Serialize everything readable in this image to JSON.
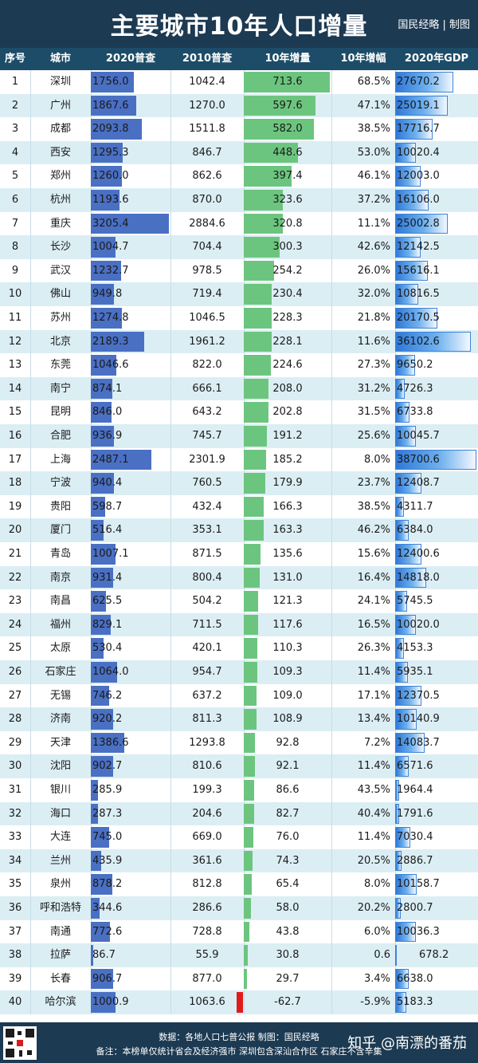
{
  "header": {
    "title": "主要城市10年人口增量",
    "brand": "国民经略 | 制图"
  },
  "columns": [
    "序号",
    "城市",
    "2020普查",
    "2010普查",
    "10年增量",
    "10年增幅",
    "2020年GDP"
  ],
  "chart_data": {
    "type": "table",
    "title": "主要城市10年人口增量",
    "columns": [
      "序号",
      "城市",
      "2020普查",
      "2010普查",
      "10年增量",
      "10年增幅",
      "2020年GDP"
    ],
    "rows": [
      [
        "1",
        "深圳",
        "1756.0",
        "1042.4",
        "713.6",
        "68.5%",
        "27670.2"
      ],
      [
        "2",
        "广州",
        "1867.6",
        "1270.0",
        "597.6",
        "47.1%",
        "25019.1"
      ],
      [
        "3",
        "成都",
        "2093.8",
        "1511.8",
        "582.0",
        "38.5%",
        "17716.7"
      ],
      [
        "4",
        "西安",
        "1295.3",
        "846.7",
        "448.6",
        "53.0%",
        "10020.4"
      ],
      [
        "5",
        "郑州",
        "1260.0",
        "862.6",
        "397.4",
        "46.1%",
        "12003.0"
      ],
      [
        "6",
        "杭州",
        "1193.6",
        "870.0",
        "323.6",
        "37.2%",
        "16106.0"
      ],
      [
        "7",
        "重庆",
        "3205.4",
        "2884.6",
        "320.8",
        "11.1%",
        "25002.8"
      ],
      [
        "8",
        "长沙",
        "1004.7",
        "704.4",
        "300.3",
        "42.6%",
        "12142.5"
      ],
      [
        "9",
        "武汉",
        "1232.7",
        "978.5",
        "254.2",
        "26.0%",
        "15616.1"
      ],
      [
        "10",
        "佛山",
        "949.8",
        "719.4",
        "230.4",
        "32.0%",
        "10816.5"
      ],
      [
        "11",
        "苏州",
        "1274.8",
        "1046.5",
        "228.3",
        "21.8%",
        "20170.5"
      ],
      [
        "12",
        "北京",
        "2189.3",
        "1961.2",
        "228.1",
        "11.6%",
        "36102.6"
      ],
      [
        "13",
        "东莞",
        "1046.6",
        "822.0",
        "224.6",
        "27.3%",
        "9650.2"
      ],
      [
        "14",
        "南宁",
        "874.1",
        "666.1",
        "208.0",
        "31.2%",
        "4726.3"
      ],
      [
        "15",
        "昆明",
        "846.0",
        "643.2",
        "202.8",
        "31.5%",
        "6733.8"
      ],
      [
        "16",
        "合肥",
        "936.9",
        "745.7",
        "191.2",
        "25.6%",
        "10045.7"
      ],
      [
        "17",
        "上海",
        "2487.1",
        "2301.9",
        "185.2",
        "8.0%",
        "38700.6"
      ],
      [
        "18",
        "宁波",
        "940.4",
        "760.5",
        "179.9",
        "23.7%",
        "12408.7"
      ],
      [
        "19",
        "贵阳",
        "598.7",
        "432.4",
        "166.3",
        "38.5%",
        "4311.7"
      ],
      [
        "20",
        "厦门",
        "516.4",
        "353.1",
        "163.3",
        "46.2%",
        "6384.0"
      ],
      [
        "21",
        "青岛",
        "1007.1",
        "871.5",
        "135.6",
        "15.6%",
        "12400.6"
      ],
      [
        "22",
        "南京",
        "931.4",
        "800.4",
        "131.0",
        "16.4%",
        "14818.0"
      ],
      [
        "23",
        "南昌",
        "625.5",
        "504.2",
        "121.3",
        "24.1%",
        "5745.5"
      ],
      [
        "24",
        "福州",
        "829.1",
        "711.5",
        "117.6",
        "16.5%",
        "10020.0"
      ],
      [
        "25",
        "太原",
        "530.4",
        "420.1",
        "110.3",
        "26.3%",
        "4153.3"
      ],
      [
        "26",
        "石家庄",
        "1064.0",
        "954.7",
        "109.3",
        "11.4%",
        "5935.1"
      ],
      [
        "27",
        "无锡",
        "746.2",
        "637.2",
        "109.0",
        "17.1%",
        "12370.5"
      ],
      [
        "28",
        "济南",
        "920.2",
        "811.3",
        "108.9",
        "13.4%",
        "10140.9"
      ],
      [
        "29",
        "天津",
        "1386.6",
        "1293.8",
        "92.8",
        "7.2%",
        "14083.7"
      ],
      [
        "30",
        "沈阳",
        "902.7",
        "810.6",
        "92.1",
        "11.4%",
        "6571.6"
      ],
      [
        "31",
        "银川",
        "285.9",
        "199.3",
        "86.6",
        "43.5%",
        "1964.4"
      ],
      [
        "32",
        "海口",
        "287.3",
        "204.6",
        "82.7",
        "40.4%",
        "1791.6"
      ],
      [
        "33",
        "大连",
        "745.0",
        "669.0",
        "76.0",
        "11.4%",
        "7030.4"
      ],
      [
        "34",
        "兰州",
        "435.9",
        "361.6",
        "74.3",
        "20.5%",
        "2886.7"
      ],
      [
        "35",
        "泉州",
        "878.2",
        "812.8",
        "65.4",
        "8.0%",
        "10158.7"
      ],
      [
        "36",
        "呼和浩特",
        "344.6",
        "286.6",
        "58.0",
        "20.2%",
        "2800.7"
      ],
      [
        "37",
        "南通",
        "772.6",
        "728.8",
        "43.8",
        "6.0%",
        "10036.3"
      ],
      [
        "38",
        "拉萨",
        "86.7",
        "55.9",
        "30.8",
        "0.6",
        "678.2"
      ],
      [
        "39",
        "长春",
        "906.7",
        "877.0",
        "29.7",
        "3.4%",
        "6638.0"
      ],
      [
        "40",
        "哈尔滨",
        "1000.9",
        "1063.6",
        "-62.7",
        "-5.9%",
        "5183.3"
      ]
    ]
  },
  "footer": {
    "source": "数据：各地人口七普公报 制图：国民经略",
    "note": "备注：本榜单仅统计省会及经济强市 深圳包含深汕合作区 石家庄不含辛集",
    "watermark": "知乎 @南漂的番茄"
  },
  "colors": {
    "title_bg": "#1c3a52",
    "header_bg": "#1c4c68",
    "row_alt": "#dbeef4",
    "pop_bar": "#4a70c4",
    "inc_bar": "#6cc57e",
    "neg_bar": "#e01b1b",
    "gdp_bar": "#2f78d8"
  },
  "icons": [
    "qr-code-icon"
  ]
}
